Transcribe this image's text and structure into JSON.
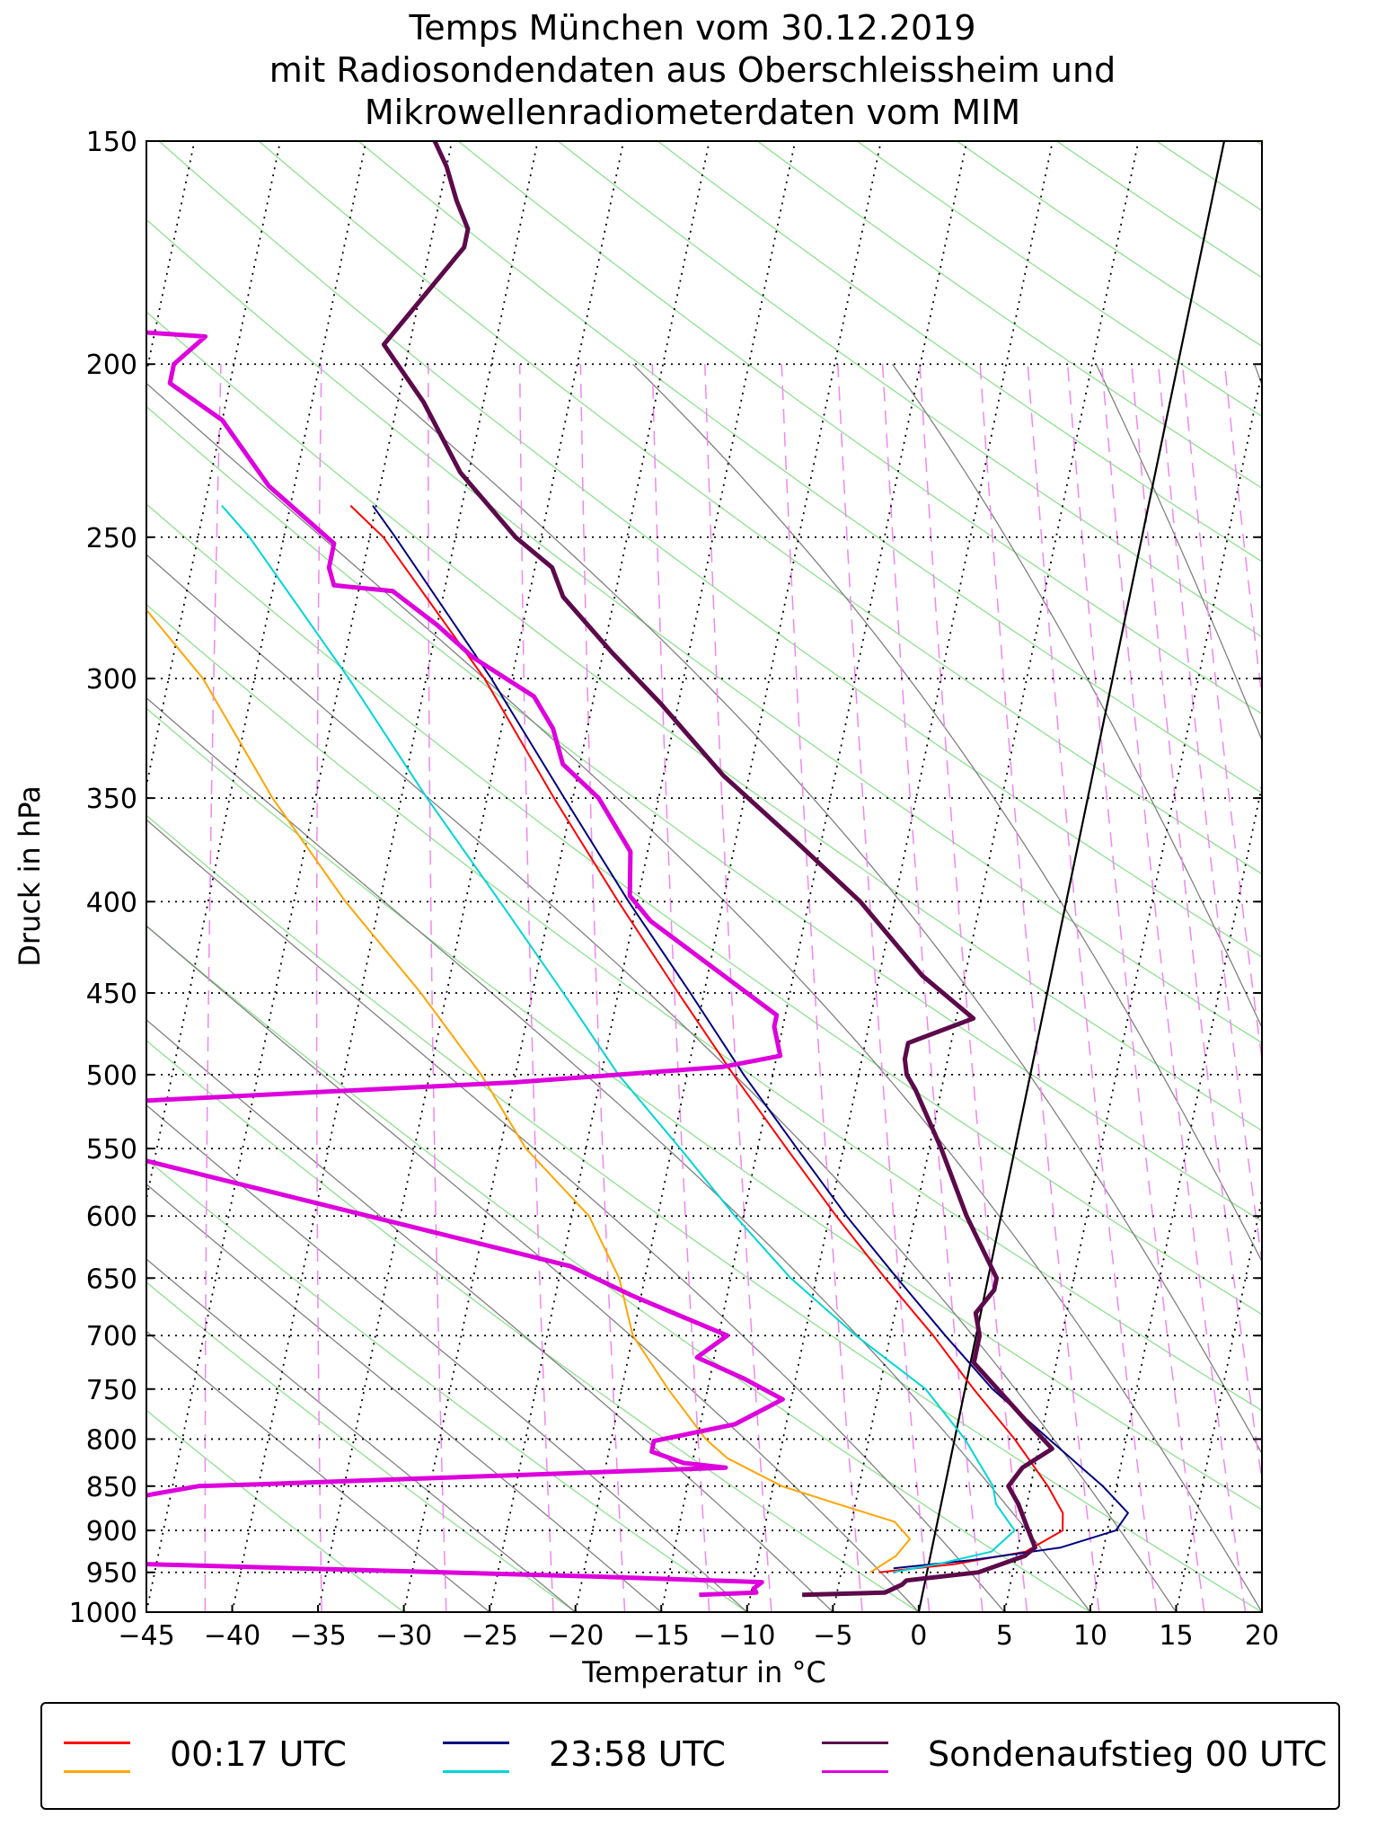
{
  "title": {
    "line1": "Temps München vom 30.12.2019",
    "line2": "mit Radiosondendaten aus Oberschleissheim und",
    "line3": "Mikrowellenradiometerdaten vom MIM"
  },
  "legend": {
    "entries": [
      {
        "label": "00:17 UTC",
        "temp_color": "#ff0000",
        "dew_color": "#ffa500"
      },
      {
        "label": "23:58 UTC",
        "temp_color": "#000080",
        "dew_color": "#00d5d5"
      },
      {
        "label": "Sondenaufstieg 00 UTC",
        "temp_color": "#5c0a4a",
        "dew_color": "#dd00dd"
      }
    ]
  },
  "chart_data": {
    "type": "line",
    "subtype": "skew-T log-p",
    "xlabel": "Temperatur in °C",
    "ylabel": "Druck in hPa",
    "xlim": [
      -45,
      20
    ],
    "ylim": [
      1000,
      150
    ],
    "yscale": "log",
    "x_ticks": [
      -45,
      -40,
      -35,
      -30,
      -25,
      -20,
      -15,
      -10,
      -5,
      0,
      5,
      10,
      15,
      20
    ],
    "x_tick_labels": [
      "−45",
      "−40",
      "−35",
      "−30",
      "−25",
      "−20",
      "−15",
      "−10",
      "−5",
      "0",
      "5",
      "10",
      "15",
      "20"
    ],
    "y_ticks": [
      1000,
      950,
      900,
      850,
      800,
      750,
      700,
      650,
      600,
      550,
      500,
      450,
      400,
      350,
      300,
      250,
      200,
      150
    ],
    "y_tick_labels": [
      "1000",
      "950",
      "900",
      "850",
      "800",
      "750",
      "700",
      "650",
      "600",
      "550",
      "500",
      "450",
      "400",
      "350",
      "300",
      "250",
      "200",
      "150"
    ],
    "grid": true,
    "legend_position": "bottom",
    "series": [
      {
        "name": "00:17 UTC",
        "kind": "temperature",
        "color": "#ff0000",
        "width": 2,
        "points": [
          [
            -2.8,
            950
          ],
          [
            1.5,
            940
          ],
          [
            5.5,
            925
          ],
          [
            7.4,
            900
          ],
          [
            7.2,
            880
          ],
          [
            6.0,
            850
          ],
          [
            3.5,
            800
          ],
          [
            0.5,
            750
          ],
          [
            -2.5,
            700
          ],
          [
            -6.0,
            650
          ],
          [
            -9.6,
            600
          ],
          [
            -13.3,
            550
          ],
          [
            -17.3,
            500
          ],
          [
            -21.5,
            450
          ],
          [
            -26.1,
            400
          ],
          [
            -31.1,
            350
          ],
          [
            -36.6,
            300
          ],
          [
            -44.2,
            250
          ],
          [
            -46.5,
            240
          ]
        ]
      },
      {
        "name": "00:17 UTC",
        "kind": "dewpoint",
        "color": "#ffa500",
        "width": 2,
        "points": [
          [
            -3.3,
            950
          ],
          [
            -2.0,
            930
          ],
          [
            -1.4,
            910
          ],
          [
            -2.5,
            890
          ],
          [
            -6.0,
            870
          ],
          [
            -9.5,
            850
          ],
          [
            -13.0,
            820
          ],
          [
            -14.5,
            800
          ],
          [
            -17.3,
            750
          ],
          [
            -20.0,
            700
          ],
          [
            -21.5,
            650
          ],
          [
            -24.0,
            600
          ],
          [
            -28.5,
            550
          ],
          [
            -32.0,
            500
          ],
          [
            -36.5,
            450
          ],
          [
            -42.0,
            400
          ],
          [
            -47.5,
            350
          ],
          [
            -53.0,
            300
          ],
          [
            -61.5,
            250
          ],
          [
            -64.0,
            240
          ]
        ]
      },
      {
        "name": "23:58 UTC",
        "kind": "temperature",
        "color": "#000080",
        "width": 2,
        "points": [
          [
            -2.0,
            945
          ],
          [
            2.5,
            935
          ],
          [
            7.5,
            920
          ],
          [
            10.5,
            900
          ],
          [
            11.0,
            880
          ],
          [
            9.2,
            850
          ],
          [
            5.5,
            800
          ],
          [
            1.6,
            750
          ],
          [
            -1.8,
            700
          ],
          [
            -5.3,
            650
          ],
          [
            -9.0,
            600
          ],
          [
            -12.7,
            550
          ],
          [
            -16.7,
            500
          ],
          [
            -20.8,
            450
          ],
          [
            -25.5,
            400
          ],
          [
            -30.5,
            350
          ],
          [
            -36.2,
            300
          ],
          [
            -43.5,
            250
          ],
          [
            -45.2,
            240
          ]
        ]
      },
      {
        "name": "23:58 UTC",
        "kind": "dewpoint",
        "color": "#00d5d5",
        "width": 2,
        "points": [
          [
            -2.0,
            950
          ],
          [
            0.5,
            940
          ],
          [
            3.5,
            925
          ],
          [
            4.6,
            900
          ],
          [
            3.2,
            870
          ],
          [
            2.8,
            850
          ],
          [
            0.6,
            800
          ],
          [
            -2.3,
            750
          ],
          [
            -7.0,
            700
          ],
          [
            -11.5,
            650
          ],
          [
            -15.5,
            600
          ],
          [
            -19.5,
            550
          ],
          [
            -24.0,
            500
          ],
          [
            -28.2,
            450
          ],
          [
            -33.0,
            400
          ],
          [
            -38.5,
            350
          ],
          [
            -44.5,
            300
          ],
          [
            -52.0,
            250
          ],
          [
            -54.0,
            240
          ]
        ]
      },
      {
        "name": "Sondenaufstieg 00 UTC",
        "kind": "temperature",
        "color": "#5c0a4a",
        "width": 5,
        "points": [
          [
            -7.0,
            978
          ],
          [
            -2.2,
            975
          ],
          [
            -1.3,
            965
          ],
          [
            -1.1,
            960
          ],
          [
            3.0,
            950
          ],
          [
            5.5,
            930
          ],
          [
            6.0,
            920
          ],
          [
            5.4,
            900
          ],
          [
            4.5,
            870
          ],
          [
            3.7,
            850
          ],
          [
            4.3,
            830
          ],
          [
            5.8,
            810
          ],
          [
            4.5,
            790
          ],
          [
            0.2,
            725
          ],
          [
            0.2,
            700
          ],
          [
            -0.3,
            680
          ],
          [
            0.5,
            660
          ],
          [
            0.5,
            650
          ],
          [
            -2.0,
            600
          ],
          [
            -4.3,
            550
          ],
          [
            -6.5,
            510
          ],
          [
            -7.2,
            500
          ],
          [
            -7.5,
            490
          ],
          [
            -7.5,
            480
          ],
          [
            -4.0,
            465
          ],
          [
            -7.5,
            440
          ],
          [
            -12.0,
            400
          ],
          [
            -16.5,
            370
          ],
          [
            -21.5,
            340
          ],
          [
            -26.0,
            310
          ],
          [
            -29.5,
            290
          ],
          [
            -33.0,
            270
          ],
          [
            -34.0,
            260
          ],
          [
            -36.5,
            250
          ],
          [
            -40.5,
            230
          ],
          [
            -43.5,
            210
          ],
          [
            -46.5,
            195
          ],
          [
            -43.0,
            172
          ],
          [
            -43.0,
            168
          ],
          [
            -44.0,
            162
          ],
          [
            -45.0,
            155
          ],
          [
            -46.0,
            150
          ]
        ]
      },
      {
        "name": "Sondenaufstieg 00 UTC",
        "kind": "dewpoint",
        "color": "#dd00dd",
        "width": 5,
        "points": [
          [
            -13.0,
            978
          ],
          [
            -9.7,
            975
          ],
          [
            -9.9,
            970
          ],
          [
            -9.5,
            962
          ],
          [
            -19.5,
            955
          ],
          [
            -49.0,
            938
          ],
          [
            -58.0,
            920
          ],
          [
            -58.0,
            915
          ],
          [
            -56.5,
            905
          ],
          [
            -52.0,
            880
          ],
          [
            -43.5,
            850
          ],
          [
            -40.0,
            848
          ],
          [
            -13.0,
            830
          ],
          [
            -15.5,
            825
          ],
          [
            -17.5,
            813
          ],
          [
            -17.5,
            802
          ],
          [
            -13.0,
            785
          ],
          [
            -10.5,
            760
          ],
          [
            -13.0,
            740
          ],
          [
            -16.0,
            720
          ],
          [
            -14.5,
            700
          ],
          [
            -20.5,
            665
          ],
          [
            -24.5,
            640
          ],
          [
            -53.5,
            550
          ],
          [
            -62.0,
            535
          ],
          [
            -65.0,
            525
          ],
          [
            -30.0,
            505
          ],
          [
            -18.0,
            495
          ],
          [
            -14.8,
            488
          ],
          [
            -15.5,
            470
          ],
          [
            -15.5,
            463
          ],
          [
            -24.0,
            410
          ],
          [
            -25.5,
            397
          ],
          [
            -26.0,
            375
          ],
          [
            -28.5,
            350
          ],
          [
            -31.0,
            335
          ],
          [
            -32.0,
            320
          ],
          [
            -33.5,
            307
          ],
          [
            -37.5,
            292
          ],
          [
            -40.0,
            280
          ],
          [
            -43.0,
            268
          ],
          [
            -46.5,
            266
          ],
          [
            -47.0,
            260
          ],
          [
            -47.0,
            252
          ],
          [
            -51.5,
            234
          ],
          [
            -55.0,
            215
          ],
          [
            -58.5,
            205
          ],
          [
            -58.5,
            200
          ],
          [
            -57.0,
            193
          ],
          [
            -60.5,
            192
          ]
        ]
      }
    ]
  }
}
